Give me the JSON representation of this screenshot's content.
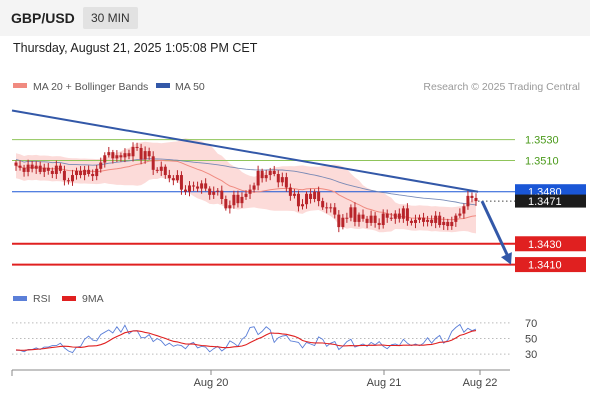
{
  "header": {
    "symbol": "GBP/USD",
    "timeframe": "30 MIN",
    "datetime": "Thursday, August 21, 2025 1:05:08 PM CET"
  },
  "legend": {
    "ma20_label": "MA 20 + Bollinger Bands",
    "ma50_label": "MA 50",
    "credit": "Research © 2025 Trading Central",
    "rsi_label": "RSI",
    "rsi_ma_label": "9MA"
  },
  "colors": {
    "ma20": "#f08a80",
    "bollinger_fill": "#fbd5d2",
    "ma50": "#6a7fb0",
    "trendline": "#3358a8",
    "candle": "#b8242a",
    "resistance": "#8fc45a",
    "support": "#e02020",
    "current": "#1a56d6",
    "rsi": "#5b7fd8",
    "rsi_ma": "#e02020"
  },
  "chart_data": [
    {
      "type": "candlestick",
      "title": "",
      "x_ticks": [
        "Aug 20",
        "Aug 21",
        "Aug 22"
      ],
      "ylim": [
        1.34,
        1.357
      ],
      "levels": [
        {
          "label": "1.3530",
          "value": 1.353,
          "kind": "resistance"
        },
        {
          "label": "1.3510",
          "value": 1.351,
          "kind": "resistance"
        },
        {
          "label": "1.3480",
          "value": 1.348,
          "kind": "current-resistance"
        },
        {
          "label": "1.3430",
          "value": 1.343,
          "kind": "support"
        },
        {
          "label": "1.3410",
          "value": 1.341,
          "kind": "support"
        }
      ],
      "last_price": {
        "label": "1.3471",
        "value": 1.3471
      },
      "trendline": {
        "from": 1.3558,
        "to": 1.348
      },
      "forecast_arrow": {
        "from": 1.3471,
        "to": 1.341
      },
      "close": [
        1.3505,
        1.3503,
        1.3499,
        1.3506,
        1.3502,
        1.3505,
        1.3499,
        1.3503,
        1.35,
        1.3497,
        1.3505,
        1.35,
        1.3491,
        1.349,
        1.3496,
        1.35,
        1.3496,
        1.3501,
        1.3497,
        1.3495,
        1.3502,
        1.3508,
        1.3515,
        1.3518,
        1.3512,
        1.3515,
        1.3513,
        1.3517,
        1.3514,
        1.3523,
        1.3522,
        1.3511,
        1.3519,
        1.3514,
        1.3501,
        1.35,
        1.3504,
        1.3496,
        1.3493,
        1.3491,
        1.3496,
        1.3482,
        1.348,
        1.3486,
        1.3485,
        1.3483,
        1.3488,
        1.3483,
        1.3477,
        1.348,
        1.3481,
        1.3473,
        1.3464,
        1.3467,
        1.3477,
        1.3469,
        1.3475,
        1.3478,
        1.3482,
        1.3486,
        1.35,
        1.3493,
        1.3496,
        1.35,
        1.3497,
        1.3489,
        1.3494,
        1.3484,
        1.3476,
        1.3478,
        1.3466,
        1.3468,
        1.3478,
        1.3473,
        1.348,
        1.3471,
        1.3465,
        1.3464,
        1.3465,
        1.3458,
        1.3446,
        1.3455,
        1.3455,
        1.3465,
        1.3451,
        1.3458,
        1.3454,
        1.345,
        1.3457,
        1.345,
        1.3448,
        1.3459,
        1.3455,
        1.3454,
        1.3459,
        1.3454,
        1.3464,
        1.3452,
        1.345,
        1.3453,
        1.3455,
        1.3451,
        1.3453,
        1.345,
        1.3457,
        1.3448,
        1.3451,
        1.3447,
        1.3451,
        1.3457,
        1.3459,
        1.3466,
        1.3476,
        1.3474,
        1.3471
      ]
    },
    {
      "type": "line",
      "title": "",
      "yticks": [
        30,
        50,
        70
      ],
      "ylim": [
        20,
        80
      ],
      "series": [
        {
          "name": "RSI",
          "values": [
            35,
            35,
            33,
            36,
            36,
            38,
            36,
            39,
            39,
            41,
            41,
            44,
            38,
            34,
            32,
            39,
            40,
            49,
            53,
            48,
            47,
            55,
            58,
            61,
            57,
            65,
            58,
            67,
            56,
            60,
            60,
            51,
            51,
            55,
            46,
            50,
            47,
            41,
            44,
            40,
            42,
            41,
            37,
            43,
            45,
            38,
            40,
            39,
            33,
            37,
            40,
            34,
            38,
            47,
            44,
            40,
            49,
            53,
            64,
            65,
            55,
            59,
            65,
            61,
            45,
            51,
            53,
            54,
            47,
            46,
            45,
            38,
            45,
            43,
            41,
            52,
            49,
            40,
            44,
            46,
            36,
            40,
            46,
            49,
            39,
            41,
            43,
            40,
            45,
            42,
            46,
            40,
            37,
            42,
            43,
            41,
            49,
            44,
            41,
            43,
            41,
            44,
            51,
            44,
            50,
            54,
            44,
            48,
            59,
            64,
            68,
            58,
            63,
            60,
            62
          ]
        },
        {
          "name": "9MA",
          "values": [
            35.5,
            35.1,
            35.0,
            35.5,
            35.7,
            36.2,
            36.6,
            37.1,
            37.9,
            38.6,
            39.1,
            39.9,
            40.2,
            39.9,
            39.1,
            38.9,
            38.7,
            39.3,
            40.3,
            40.5,
            40.8,
            42.1,
            44.0,
            46.8,
            50.0,
            52.6,
            54.9,
            57.4,
            58.6,
            59.6,
            59.8,
            59.0,
            57.8,
            56.9,
            55.1,
            53.6,
            51.8,
            50.1,
            48.1,
            46.4,
            45.6,
            44.3,
            43.1,
            42.9,
            42.8,
            41.8,
            41.1,
            40.7,
            40.0,
            39.7,
            39.4,
            38.6,
            38.2,
            38.6,
            39.4,
            39.6,
            40.4,
            42.0,
            44.8,
            47.3,
            49.6,
            51.8,
            54.6,
            57.0,
            56.8,
            56.6,
            55.9,
            55.3,
            54.1,
            52.8,
            50.6,
            47.4,
            46.0,
            44.9,
            44.4,
            44.4,
            44.2,
            43.6,
            43.1,
            42.4,
            40.9,
            40.4,
            40.7,
            41.0,
            40.7,
            40.9,
            41.2,
            41.2,
            41.5,
            41.3,
            41.7,
            41.6,
            41.1,
            41.1,
            41.1,
            40.9,
            41.4,
            41.5,
            41.4,
            41.7,
            41.5,
            41.4,
            42.1,
            42.5,
            43.6,
            45.1,
            45.4,
            46.2,
            48.0,
            50.7,
            53.9,
            55.2,
            57.3,
            59.3,
            60.1
          ]
        }
      ]
    }
  ]
}
